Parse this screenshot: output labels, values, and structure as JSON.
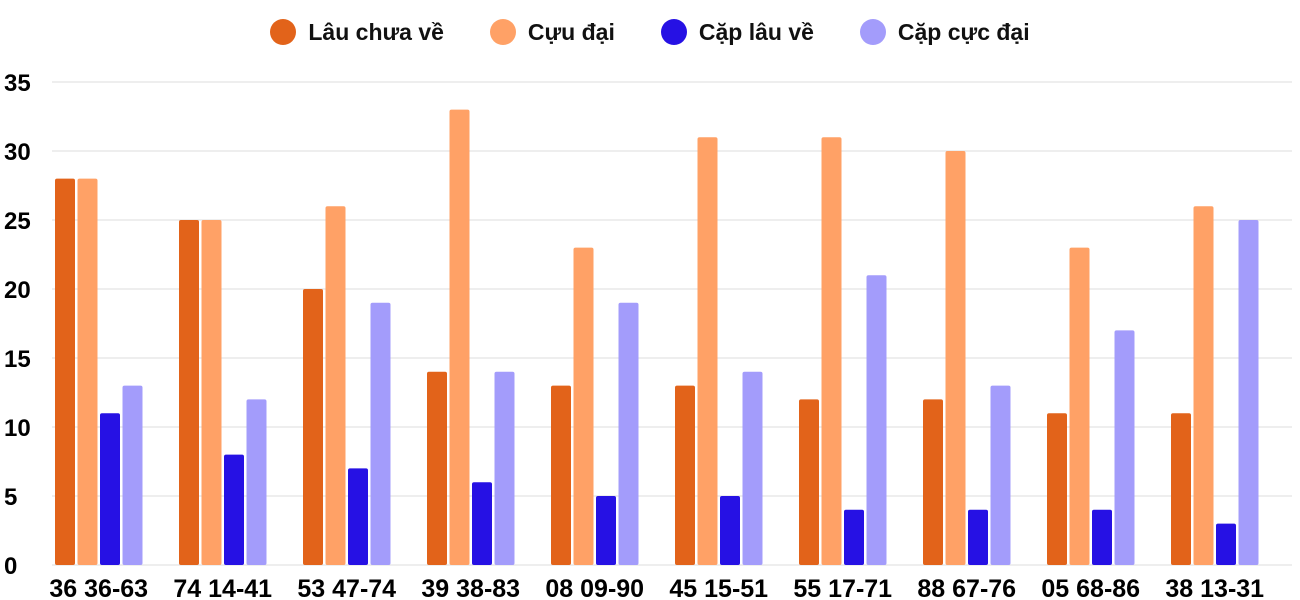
{
  "chart_data": {
    "type": "bar",
    "categories": [
      "36 36-63",
      "74 14-41",
      "53 47-74",
      "39 38-83",
      "08 09-90",
      "45 15-51",
      "55 17-71",
      "88 67-76",
      "05 68-86",
      "38 13-31"
    ],
    "series": [
      {
        "name": "Lâu chưa về",
        "color": "#e2631a",
        "values": [
          28,
          25,
          20,
          14,
          13,
          13,
          12,
          12,
          11,
          11
        ]
      },
      {
        "name": "Cựu đại",
        "color": "#ffa166",
        "values": [
          28,
          25,
          26,
          33,
          23,
          31,
          31,
          30,
          23,
          26
        ]
      },
      {
        "name": "Cặp lâu về",
        "color": "#2611e4",
        "values": [
          11,
          8,
          7,
          6,
          5,
          5,
          4,
          4,
          4,
          3
        ]
      },
      {
        "name": "Cặp cực đại",
        "color": "#a39cfb",
        "values": [
          13,
          12,
          19,
          14,
          19,
          14,
          21,
          13,
          17,
          25
        ]
      }
    ],
    "yticks": [
      "0",
      "5",
      "10",
      "15",
      "20",
      "25",
      "30",
      "35"
    ],
    "ylim": [
      0,
      35
    ],
    "legend_position": "top-center",
    "grid": true
  }
}
